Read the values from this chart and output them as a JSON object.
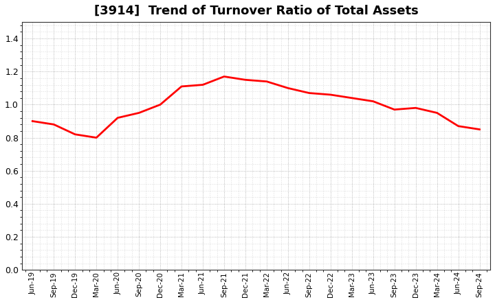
{
  "title": "[3914]  Trend of Turnover Ratio of Total Assets",
  "x_labels": [
    "Jun-19",
    "Sep-19",
    "Dec-19",
    "Mar-20",
    "Jun-20",
    "Sep-20",
    "Dec-20",
    "Mar-21",
    "Jun-21",
    "Sep-21",
    "Dec-21",
    "Mar-22",
    "Jun-22",
    "Sep-22",
    "Dec-22",
    "Mar-23",
    "Jun-23",
    "Sep-23",
    "Dec-23",
    "Mar-24",
    "Jun-24",
    "Sep-24"
  ],
  "values": [
    0.9,
    0.88,
    0.82,
    0.8,
    0.92,
    0.95,
    1.0,
    1.11,
    1.12,
    1.17,
    1.15,
    1.14,
    1.1,
    1.07,
    1.06,
    1.04,
    1.02,
    0.97,
    0.98,
    0.95,
    0.87,
    0.85
  ],
  "line_color": "#FF0000",
  "background_color": "#FFFFFF",
  "grid_color": "#999999",
  "title_fontsize": 13,
  "ylim": [
    0.0,
    1.5
  ],
  "yticks": [
    0.0,
    0.2,
    0.4,
    0.6,
    0.8,
    1.0,
    1.2,
    1.4
  ]
}
